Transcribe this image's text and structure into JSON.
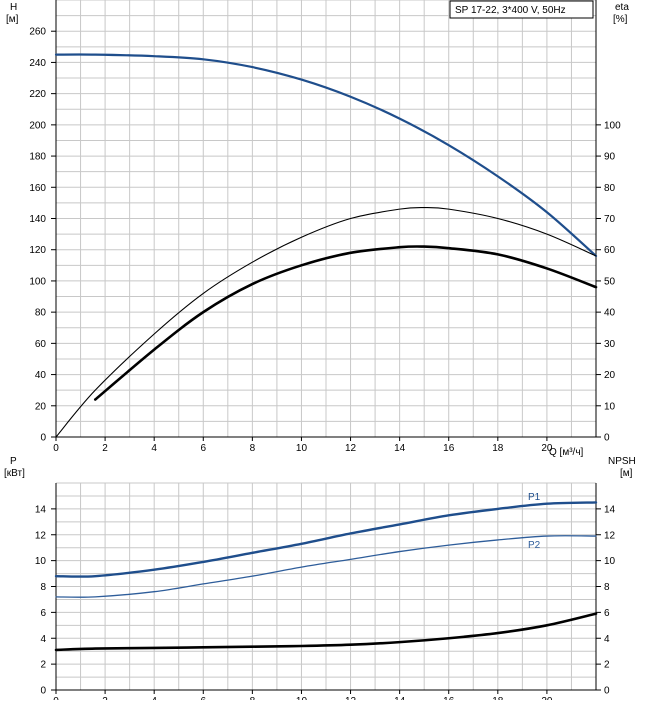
{
  "colors": {
    "head": "#1f4e8c",
    "p1": "#1f4e8c",
    "p2": "#2e5d9a",
    "eff": "#000000",
    "grid": "#c8c8c8"
  },
  "legend_box": "SP 17-22, 3*400 V, 50Hz",
  "chart_data": [
    {
      "type": "line",
      "ylabel_left": "H",
      "ylabel_left_unit": "[м]",
      "ylabel_right": "eta",
      "ylabel_right_unit": "[%]",
      "xlabel": "Q [м³/ч]",
      "xlim": [
        0,
        22
      ],
      "x_ticks": [
        0,
        2,
        4,
        6,
        8,
        10,
        12,
        14,
        16,
        18,
        20
      ],
      "ylim_left": [
        0,
        280
      ],
      "y_ticks_left": [
        0,
        20,
        40,
        60,
        80,
        100,
        120,
        140,
        160,
        180,
        200,
        220,
        240,
        260
      ],
      "ylim_right": [
        0,
        140
      ],
      "y_ticks_right": [
        0,
        10,
        20,
        30,
        40,
        50,
        60,
        70,
        80,
        90,
        100
      ],
      "grid": true,
      "series": [
        {
          "axis": "left",
          "style": "head-curve",
          "x": [
            0,
            1.6,
            4,
            6,
            8,
            10,
            12,
            14,
            16,
            18,
            20,
            22
          ],
          "values": [
            245,
            245,
            244,
            242,
            237,
            229,
            218,
            204,
            187,
            167,
            144,
            116
          ]
        },
        {
          "axis": "right",
          "style": "eta-thin",
          "x": [
            0,
            1.6,
            4,
            6,
            8,
            10,
            12,
            14,
            15,
            16,
            18,
            20,
            22
          ],
          "values": [
            0,
            15,
            33,
            46,
            56,
            64,
            70,
            73,
            73.5,
            73,
            70,
            65,
            58
          ]
        },
        {
          "axis": "right",
          "style": "eta-bold",
          "x": [
            1.6,
            4,
            6,
            8,
            10,
            12,
            14,
            15,
            16,
            18,
            20,
            22
          ],
          "values": [
            12,
            28,
            40,
            49,
            55,
            59,
            60.8,
            61,
            60.5,
            58.5,
            54,
            48
          ]
        }
      ]
    },
    {
      "type": "line",
      "ylabel_left": "P",
      "ylabel_left_unit": "[кВт]",
      "ylabel_right": "NPSH",
      "ylabel_right_unit": "[м]",
      "xlim": [
        0,
        22
      ],
      "x_ticks": [
        0,
        2,
        4,
        6,
        8,
        10,
        12,
        14,
        16,
        18,
        20
      ],
      "ylim_left": [
        0,
        16
      ],
      "y_ticks_left": [
        0,
        2,
        4,
        6,
        8,
        10,
        12,
        14
      ],
      "ylim_right": [
        0,
        16
      ],
      "y_ticks_right": [
        0,
        2,
        4,
        6,
        8,
        10,
        12,
        14
      ],
      "grid": true,
      "series": [
        {
          "name": "P1",
          "axis": "left",
          "style": "p1",
          "x": [
            0,
            1.6,
            4,
            6,
            8,
            10,
            12,
            14,
            16,
            18,
            20,
            22
          ],
          "values": [
            8.8,
            8.8,
            9.3,
            9.9,
            10.6,
            11.3,
            12.1,
            12.8,
            13.5,
            14.0,
            14.4,
            14.5
          ]
        },
        {
          "name": "P2",
          "axis": "left",
          "style": "p2",
          "x": [
            0,
            1.6,
            4,
            6,
            8,
            10,
            12,
            14,
            16,
            18,
            20,
            22
          ],
          "values": [
            7.2,
            7.2,
            7.6,
            8.2,
            8.8,
            9.5,
            10.1,
            10.7,
            11.2,
            11.6,
            11.9,
            11.9
          ]
        },
        {
          "axis": "right",
          "style": "npsh",
          "x": [
            0,
            1.6,
            4,
            6,
            8,
            10,
            12,
            14,
            16,
            18,
            20,
            22
          ],
          "values": [
            3.1,
            3.2,
            3.25,
            3.3,
            3.35,
            3.4,
            3.5,
            3.7,
            4.0,
            4.4,
            5.0,
            5.9
          ]
        }
      ]
    }
  ]
}
